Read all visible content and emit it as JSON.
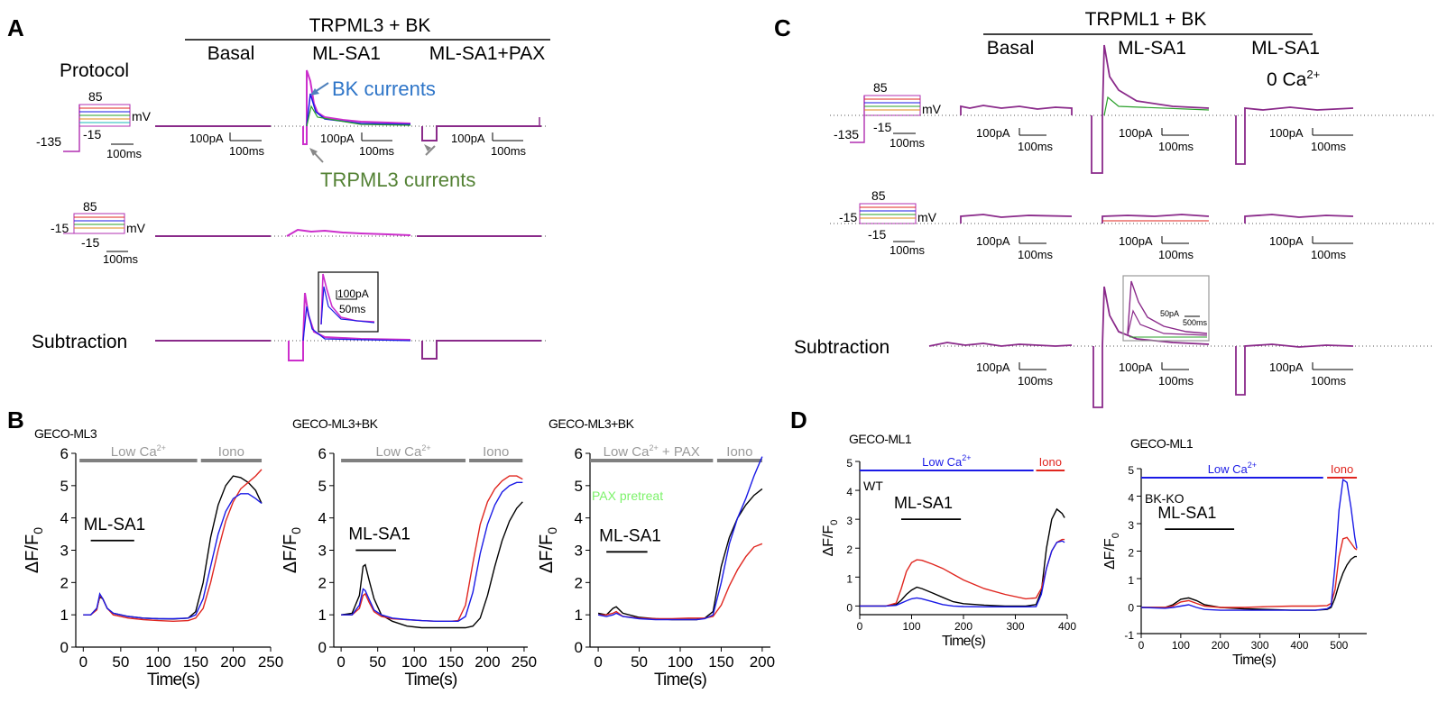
{
  "panels": {
    "A": "A",
    "B": "B",
    "C": "C",
    "D": "D"
  },
  "panel_a": {
    "header": "TRPML3 + BK",
    "conditions": [
      "Basal",
      "ML-SA1",
      "ML-SA1+PAX"
    ],
    "protocol_label": "Protocol",
    "subtraction_label": "Subtraction",
    "bk_annotation": "BK currents",
    "trpml3_annotation": "TRPML3 currents",
    "protocol1": {
      "top": "85",
      "unit": "mV",
      "hold": "-135",
      "bottom": "-15",
      "time": "100ms"
    },
    "protocol2": {
      "top": "85",
      "unit": "mV",
      "hold": "-15",
      "bottom": "-15",
      "time": "100ms"
    },
    "scale_current": "100pA",
    "scale_time": "100ms",
    "inset_current": "100pA",
    "inset_time": "50ms"
  },
  "panel_c": {
    "header": "TRPML1 + BK",
    "conditions": [
      "Basal",
      "ML-SA1",
      "ML-SA1",
      "0 Ca"
    ],
    "ca_superscript": "2+",
    "subtraction_label": "Subtraction",
    "protocol1": {
      "top": "85",
      "unit": "mV",
      "hold": "-135",
      "bottom": "-15",
      "time": "100ms"
    },
    "protocol2": {
      "top": "85",
      "unit": "mV",
      "hold": "-15",
      "bottom": "-15",
      "time": "100ms"
    },
    "scale_current": "100pA",
    "scale_time": "100ms",
    "inset_current": "50pA",
    "inset_time": "500ms"
  },
  "chart_data": [
    {
      "type": "line",
      "panel": "B",
      "title": "GECO-ML3",
      "xlabel": "Time(s)",
      "ylabel": "ΔF/F0",
      "xlim": [
        -10,
        250
      ],
      "ylim": [
        0,
        6
      ],
      "xticks": [
        0,
        50,
        100,
        150,
        200,
        250
      ],
      "xtick_labels": [
        "0",
        "50",
        "100",
        "150",
        "200",
        "250"
      ],
      "yticks": [
        0,
        1,
        2,
        3,
        4,
        5,
        6
      ],
      "bars": [
        {
          "label": "Low Ca",
          "sup": "2+",
          "x0": -5,
          "x1": 152,
          "color": "#808080"
        },
        {
          "label": "Iono",
          "sup": "",
          "x0": 157,
          "x1": 238,
          "color": "#808080"
        }
      ],
      "stim": {
        "label": "ML-SA1",
        "x0": 10,
        "x1": 68,
        "y": 3.3
      },
      "series": [
        {
          "color": "#000000",
          "x": [
            0,
            10,
            18,
            22,
            26,
            32,
            40,
            60,
            80,
            100,
            120,
            140,
            150,
            160,
            170,
            180,
            190,
            200,
            210,
            220,
            230,
            238
          ],
          "y": [
            1,
            1,
            1.2,
            1.55,
            1.5,
            1.2,
            1.05,
            0.95,
            0.9,
            0.88,
            0.87,
            0.9,
            1.1,
            2.0,
            3.4,
            4.4,
            5.0,
            5.3,
            5.25,
            5.1,
            4.85,
            4.45
          ]
        },
        {
          "color": "#e0261f",
          "x": [
            0,
            10,
            18,
            22,
            26,
            32,
            40,
            60,
            80,
            100,
            120,
            140,
            150,
            160,
            170,
            180,
            190,
            200,
            210,
            220,
            230,
            238
          ],
          "y": [
            1,
            1,
            1.15,
            1.6,
            1.5,
            1.2,
            1.0,
            0.9,
            0.85,
            0.82,
            0.8,
            0.82,
            0.9,
            1.2,
            2.0,
            3.0,
            3.9,
            4.5,
            4.9,
            5.1,
            5.3,
            5.5
          ]
        },
        {
          "color": "#1a1ae6",
          "x": [
            0,
            10,
            18,
            22,
            26,
            32,
            40,
            60,
            80,
            100,
            120,
            140,
            150,
            160,
            170,
            180,
            190,
            200,
            210,
            220,
            230,
            238
          ],
          "y": [
            1,
            1,
            1.2,
            1.65,
            1.5,
            1.2,
            1.05,
            0.95,
            0.9,
            0.88,
            0.88,
            0.9,
            1.0,
            1.5,
            2.5,
            3.5,
            4.2,
            4.6,
            4.75,
            4.75,
            4.6,
            4.45
          ]
        }
      ]
    },
    {
      "type": "line",
      "panel": "B",
      "title": "GECO-ML3+BK",
      "xlabel": "Time(s)",
      "ylabel": "ΔF/F0",
      "xlim": [
        -10,
        255
      ],
      "ylim": [
        0,
        6
      ],
      "xticks": [
        0,
        50,
        100,
        150,
        200,
        250
      ],
      "xtick_labels": [
        "0",
        "50",
        "100",
        "150",
        "200",
        "250"
      ],
      "yticks": [
        0,
        1,
        2,
        3,
        4,
        5,
        6
      ],
      "bars": [
        {
          "label": "Low Ca",
          "sup": "2+",
          "x0": 0,
          "x1": 170,
          "color": "#808080"
        },
        {
          "label": "Iono",
          "sup": "",
          "x0": 175,
          "x1": 248,
          "color": "#808080"
        }
      ],
      "stim": {
        "label": "ML-SA1",
        "x0": 20,
        "x1": 75,
        "y": 3.0
      },
      "series": [
        {
          "color": "#000000",
          "x": [
            0,
            15,
            25,
            30,
            33,
            38,
            45,
            55,
            70,
            90,
            110,
            130,
            150,
            170,
            180,
            190,
            200,
            210,
            220,
            230,
            240,
            248
          ],
          "y": [
            1,
            1.05,
            1.6,
            2.5,
            2.55,
            2.1,
            1.5,
            1.0,
            0.8,
            0.65,
            0.6,
            0.6,
            0.6,
            0.6,
            0.65,
            0.9,
            1.6,
            2.5,
            3.3,
            3.9,
            4.3,
            4.5
          ]
        },
        {
          "color": "#e0261f",
          "x": [
            0,
            15,
            25,
            30,
            33,
            38,
            45,
            55,
            70,
            90,
            110,
            130,
            150,
            160,
            170,
            180,
            190,
            200,
            210,
            220,
            230,
            240,
            248
          ],
          "y": [
            1,
            1.0,
            1.2,
            1.6,
            1.65,
            1.4,
            1.1,
            0.95,
            0.88,
            0.85,
            0.82,
            0.8,
            0.8,
            0.82,
            1.3,
            2.6,
            3.8,
            4.5,
            4.9,
            5.15,
            5.3,
            5.3,
            5.2
          ]
        },
        {
          "color": "#1a1ae6",
          "x": [
            0,
            15,
            25,
            30,
            33,
            38,
            45,
            55,
            70,
            90,
            110,
            130,
            150,
            160,
            170,
            180,
            190,
            200,
            210,
            220,
            230,
            240,
            248
          ],
          "y": [
            1,
            1.0,
            1.3,
            1.8,
            1.75,
            1.5,
            1.15,
            1.0,
            0.9,
            0.85,
            0.82,
            0.8,
            0.8,
            0.8,
            0.95,
            1.7,
            2.9,
            3.8,
            4.4,
            4.8,
            5.0,
            5.1,
            5.1
          ]
        }
      ]
    },
    {
      "type": "line",
      "panel": "B",
      "title": "GECO-ML3+BK",
      "xlabel": "Time(s)",
      "ylabel": "ΔF/F0",
      "xlim": [
        -10,
        210
      ],
      "ylim": [
        0,
        6
      ],
      "xticks": [
        0,
        50,
        100,
        150,
        200
      ],
      "xtick_labels": [
        "0",
        "50",
        "100",
        "150",
        "200"
      ],
      "yticks": [
        0,
        1,
        2,
        3,
        4,
        5,
        6
      ],
      "bars": [
        {
          "label": "Low Ca",
          "sup": "2+",
          "suffix": " + PAX",
          "x0": -10,
          "x1": 140,
          "color": "#808080"
        },
        {
          "label": "Iono",
          "sup": "",
          "x0": 145,
          "x1": 200,
          "color": "#808080"
        }
      ],
      "stim": {
        "label": "ML-SA1",
        "x0": 10,
        "x1": 60,
        "y": 2.95
      },
      "annotation": {
        "text": "PAX pretreat",
        "color": "#7cf26a"
      },
      "series": [
        {
          "color": "#000000",
          "x": [
            0,
            10,
            18,
            22,
            30,
            50,
            70,
            90,
            110,
            120,
            130,
            140,
            150,
            160,
            170,
            180,
            190,
            200
          ],
          "y": [
            1.05,
            1.0,
            1.2,
            1.25,
            1.05,
            0.92,
            0.88,
            0.85,
            0.85,
            0.85,
            0.9,
            1.1,
            2.5,
            3.4,
            4.0,
            4.4,
            4.7,
            4.9
          ]
        },
        {
          "color": "#e0261f",
          "x": [
            0,
            10,
            18,
            22,
            30,
            50,
            70,
            90,
            110,
            120,
            130,
            140,
            150,
            160,
            170,
            180,
            190,
            200
          ],
          "y": [
            1.0,
            1.0,
            1.05,
            1.1,
            0.95,
            0.9,
            0.88,
            0.88,
            0.9,
            0.9,
            0.9,
            0.95,
            1.3,
            1.9,
            2.4,
            2.8,
            3.1,
            3.2
          ]
        },
        {
          "color": "#1a1ae6",
          "x": [
            0,
            10,
            18,
            22,
            30,
            50,
            70,
            90,
            110,
            120,
            130,
            140,
            150,
            160,
            170,
            180,
            190,
            200
          ],
          "y": [
            1.0,
            0.95,
            1.0,
            1.05,
            0.95,
            0.88,
            0.85,
            0.85,
            0.85,
            0.85,
            0.88,
            1.0,
            2.0,
            3.2,
            4.0,
            4.6,
            5.3,
            5.9
          ]
        }
      ]
    },
    {
      "type": "line",
      "panel": "D",
      "title": "GECO-ML1",
      "subtitle": "WT",
      "xlabel": "Time(s)",
      "ylabel": "ΔF/F0",
      "xlim": [
        0,
        400
      ],
      "ylim": [
        -0.3,
        5
      ],
      "xticks": [
        0,
        100,
        200,
        300,
        400
      ],
      "xtick_labels": [
        "0",
        "100",
        "200",
        "300",
        "400"
      ],
      "yticks": [
        0,
        1,
        2,
        3,
        4,
        5
      ],
      "bars": [
        {
          "label": "Low Ca",
          "sup": "2+",
          "x0": 0,
          "x1": 335,
          "color": "#1a1ae6"
        },
        {
          "label": "Iono",
          "sup": "",
          "x0": 340,
          "x1": 395,
          "color": "#e0261f"
        }
      ],
      "stim": {
        "label": "ML-SA1",
        "x0": 80,
        "x1": 195,
        "y": 3.0
      },
      "series": [
        {
          "color": "#000000",
          "x": [
            0,
            50,
            70,
            80,
            90,
            100,
            110,
            120,
            140,
            160,
            180,
            200,
            240,
            280,
            320,
            340,
            350,
            360,
            370,
            380,
            390,
            395
          ],
          "y": [
            0,
            0,
            0.05,
            0.2,
            0.4,
            0.55,
            0.65,
            0.6,
            0.45,
            0.3,
            0.15,
            0.08,
            0.03,
            0.0,
            0.0,
            0.05,
            0.5,
            2.0,
            3.0,
            3.35,
            3.2,
            3.05
          ]
        },
        {
          "color": "#e0261f",
          "x": [
            0,
            50,
            70,
            80,
            90,
            100,
            110,
            120,
            140,
            160,
            180,
            200,
            240,
            280,
            320,
            340,
            350,
            360,
            370,
            380,
            390,
            395
          ],
          "y": [
            0,
            0,
            0.1,
            0.6,
            1.2,
            1.5,
            1.6,
            1.58,
            1.45,
            1.3,
            1.1,
            0.9,
            0.6,
            0.4,
            0.25,
            0.28,
            0.6,
            1.3,
            1.9,
            2.2,
            2.3,
            2.3
          ]
        },
        {
          "color": "#1a1ae6",
          "x": [
            0,
            50,
            70,
            80,
            90,
            100,
            110,
            120,
            140,
            160,
            180,
            200,
            240,
            280,
            320,
            340,
            350,
            360,
            370,
            380,
            390,
            395
          ],
          "y": [
            0,
            0,
            0.02,
            0.1,
            0.18,
            0.25,
            0.28,
            0.25,
            0.15,
            0.05,
            0.0,
            -0.02,
            -0.03,
            -0.03,
            -0.03,
            -0.02,
            0.4,
            1.3,
            1.9,
            2.2,
            2.25,
            2.2
          ]
        }
      ]
    },
    {
      "type": "line",
      "panel": "D",
      "title": "GECO-ML1",
      "subtitle": "BK-KO",
      "xlabel": "Time(s)",
      "ylabel": "ΔF/F0",
      "xlim": [
        0,
        570
      ],
      "ylim": [
        -1,
        5
      ],
      "xticks": [
        0,
        100,
        200,
        300,
        400,
        500
      ],
      "xtick_labels": [
        "0",
        "100",
        "200",
        "300",
        "400",
        "500"
      ],
      "yticks": [
        -1,
        0,
        1,
        2,
        3,
        4,
        5
      ],
      "bars": [
        {
          "label": "Low Ca",
          "sup": "2+",
          "x0": 0,
          "x1": 460,
          "color": "#1a1ae6"
        },
        {
          "label": "Iono",
          "sup": "",
          "x0": 470,
          "x1": 545,
          "color": "#e0261f"
        }
      ],
      "stim": {
        "label": "ML-SA1",
        "x0": 60,
        "x1": 235,
        "y": 2.8
      },
      "series": [
        {
          "color": "#000000",
          "x": [
            0,
            60,
            80,
            100,
            120,
            140,
            160,
            200,
            260,
            320,
            380,
            440,
            470,
            480,
            490,
            500,
            510,
            520,
            530,
            540,
            545
          ],
          "y": [
            -0.05,
            -0.05,
            0.05,
            0.25,
            0.3,
            0.2,
            0.05,
            -0.05,
            -0.1,
            -0.12,
            -0.15,
            -0.15,
            -0.12,
            -0.05,
            0.3,
            0.8,
            1.2,
            1.5,
            1.7,
            1.8,
            1.8
          ]
        },
        {
          "color": "#e0261f",
          "x": [
            0,
            60,
            80,
            100,
            120,
            140,
            160,
            200,
            260,
            320,
            380,
            440,
            470,
            480,
            490,
            500,
            510,
            520,
            530,
            540,
            545
          ],
          "y": [
            -0.05,
            -0.05,
            0.0,
            0.15,
            0.2,
            0.1,
            0.0,
            -0.05,
            -0.05,
            -0.02,
            0.0,
            0.0,
            0.02,
            0.1,
            0.6,
            1.8,
            2.45,
            2.5,
            2.3,
            2.1,
            2.05
          ]
        },
        {
          "color": "#1a1ae6",
          "x": [
            0,
            60,
            80,
            100,
            120,
            140,
            160,
            200,
            260,
            320,
            380,
            440,
            470,
            480,
            490,
            500,
            510,
            520,
            530,
            540,
            545
          ],
          "y": [
            -0.05,
            -0.08,
            -0.05,
            0.0,
            0.05,
            -0.05,
            -0.12,
            -0.15,
            -0.15,
            -0.15,
            -0.15,
            -0.15,
            -0.1,
            0.0,
            1.5,
            3.5,
            4.6,
            4.5,
            3.6,
            2.5,
            2.1
          ]
        }
      ]
    }
  ]
}
